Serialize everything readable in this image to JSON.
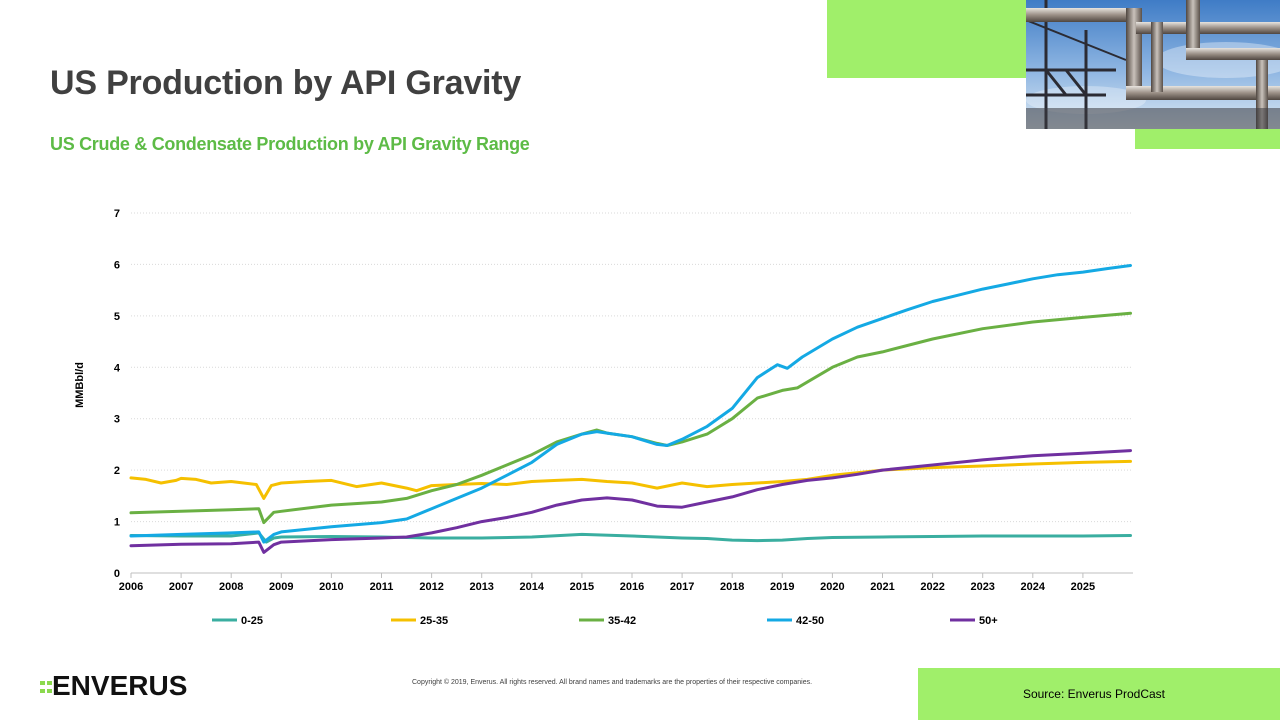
{
  "slide": {
    "title": "US Production by API Gravity",
    "subtitle": "US Crude & Condensate Production by API Gravity Range",
    "copyright": "Copyright © 2019, Enverus. All rights reserved. All brand names and trademarks are the properties of their respective companies.",
    "source": "Source: Enverus  ProdCast",
    "logo_text": "ENVERUS",
    "accent_color": "#a0ef6a",
    "brand_color": "#5dbb46"
  },
  "chart_data": {
    "type": "line",
    "title": "",
    "xlabel": "",
    "ylabel": "MMBbl/d",
    "xlim": [
      2006,
      2026
    ],
    "ylim": [
      0,
      7
    ],
    "yticks": [
      "0",
      "1",
      "2",
      "3",
      "4",
      "5",
      "6",
      "7"
    ],
    "xticks": [
      "2006",
      "2007",
      "2008",
      "2009",
      "2010",
      "2011",
      "2012",
      "2013",
      "2014",
      "2015",
      "2016",
      "2017",
      "2018",
      "2019",
      "2020",
      "2021",
      "2022",
      "2023",
      "2024",
      "2025"
    ],
    "grid": true,
    "legend_position": "bottom",
    "series": [
      {
        "name": "0-25",
        "color": "#3aaea0",
        "x": [
          2006,
          2007,
          2008,
          2008.55,
          2008.7,
          2008.85,
          2009,
          2010,
          2011,
          2012,
          2013,
          2014,
          2015,
          2016,
          2017,
          2017.5,
          2018,
          2018.5,
          2019,
          2019.5,
          2020,
          2021,
          2022,
          2023,
          2024,
          2025,
          2025.95
        ],
        "values": [
          0.73,
          0.72,
          0.72,
          0.78,
          0.6,
          0.68,
          0.7,
          0.71,
          0.7,
          0.68,
          0.68,
          0.7,
          0.75,
          0.72,
          0.68,
          0.67,
          0.64,
          0.63,
          0.64,
          0.67,
          0.69,
          0.7,
          0.71,
          0.72,
          0.72,
          0.72,
          0.73
        ]
      },
      {
        "name": "25-35",
        "color": "#f5c000",
        "x": [
          2006,
          2006.3,
          2006.6,
          2006.9,
          2007,
          2007.3,
          2007.6,
          2008,
          2008.5,
          2008.65,
          2008.8,
          2009,
          2009.5,
          2010,
          2010.5,
          2011,
          2011.5,
          2011.7,
          2012,
          2012.5,
          2013,
          2013.5,
          2014,
          2014.5,
          2015,
          2015.5,
          2016,
          2016.5,
          2017,
          2017.5,
          2018,
          2018.5,
          2019,
          2019.5,
          2020,
          2020.5,
          2021,
          2022,
          2023,
          2024,
          2025,
          2025.95
        ],
        "values": [
          1.85,
          1.82,
          1.75,
          1.8,
          1.84,
          1.82,
          1.75,
          1.78,
          1.72,
          1.45,
          1.7,
          1.75,
          1.78,
          1.8,
          1.68,
          1.75,
          1.65,
          1.6,
          1.7,
          1.72,
          1.74,
          1.72,
          1.78,
          1.8,
          1.82,
          1.78,
          1.75,
          1.65,
          1.75,
          1.68,
          1.72,
          1.75,
          1.78,
          1.82,
          1.9,
          1.95,
          2.0,
          2.05,
          2.08,
          2.12,
          2.15,
          2.17
        ]
      },
      {
        "name": "35-42",
        "color": "#6ab043",
        "x": [
          2006,
          2007,
          2008,
          2008.55,
          2008.65,
          2008.85,
          2009,
          2010,
          2011,
          2011.5,
          2012,
          2012.5,
          2013,
          2013.5,
          2014,
          2014.5,
          2015,
          2015.3,
          2015.5,
          2016,
          2016.5,
          2016.7,
          2017,
          2017.5,
          2018,
          2018.5,
          2019,
          2019.3,
          2020,
          2020.5,
          2021,
          2022,
          2023,
          2024,
          2025,
          2025.95
        ],
        "values": [
          1.17,
          1.2,
          1.23,
          1.25,
          0.98,
          1.18,
          1.2,
          1.32,
          1.38,
          1.45,
          1.6,
          1.72,
          1.9,
          2.1,
          2.3,
          2.55,
          2.7,
          2.78,
          2.72,
          2.65,
          2.52,
          2.48,
          2.55,
          2.7,
          3.0,
          3.4,
          3.55,
          3.6,
          4.0,
          4.2,
          4.3,
          4.55,
          4.75,
          4.88,
          4.97,
          5.05
        ]
      },
      {
        "name": "42-50",
        "color": "#14a9e4",
        "x": [
          2006,
          2007,
          2008,
          2008.55,
          2008.65,
          2008.85,
          2009,
          2010,
          2011,
          2011.5,
          2012,
          2012.5,
          2013,
          2013.5,
          2014,
          2014.5,
          2015,
          2015.3,
          2015.5,
          2016,
          2016.5,
          2016.7,
          2017,
          2017.5,
          2018,
          2018.5,
          2018.9,
          2019.1,
          2019.4,
          2020,
          2020.5,
          2021,
          2021.5,
          2022,
          2022.5,
          2023,
          2023.5,
          2024,
          2024.5,
          2025,
          2025.5,
          2025.95
        ],
        "values": [
          0.72,
          0.75,
          0.78,
          0.8,
          0.6,
          0.75,
          0.8,
          0.9,
          0.98,
          1.05,
          1.25,
          1.45,
          1.65,
          1.9,
          2.15,
          2.5,
          2.7,
          2.75,
          2.72,
          2.65,
          2.5,
          2.48,
          2.6,
          2.85,
          3.2,
          3.8,
          4.05,
          3.98,
          4.2,
          4.55,
          4.78,
          4.95,
          5.12,
          5.28,
          5.4,
          5.52,
          5.62,
          5.72,
          5.8,
          5.85,
          5.92,
          5.98
        ]
      },
      {
        "name": "50+",
        "color": "#7030a0",
        "x": [
          2006,
          2007,
          2008,
          2008.55,
          2008.65,
          2008.85,
          2009,
          2010,
          2011,
          2011.5,
          2012,
          2012.5,
          2013,
          2013.5,
          2014,
          2014.5,
          2015,
          2015.5,
          2016,
          2016.5,
          2017,
          2017.5,
          2018,
          2018.5,
          2019,
          2019.5,
          2020,
          2020.5,
          2021,
          2022,
          2023,
          2024,
          2025,
          2025.95
        ],
        "values": [
          0.53,
          0.56,
          0.57,
          0.6,
          0.4,
          0.55,
          0.6,
          0.65,
          0.68,
          0.7,
          0.78,
          0.88,
          1.0,
          1.08,
          1.18,
          1.32,
          1.42,
          1.46,
          1.42,
          1.3,
          1.28,
          1.38,
          1.48,
          1.62,
          1.72,
          1.8,
          1.85,
          1.92,
          2.0,
          2.1,
          2.2,
          2.28,
          2.33,
          2.38
        ]
      }
    ]
  }
}
